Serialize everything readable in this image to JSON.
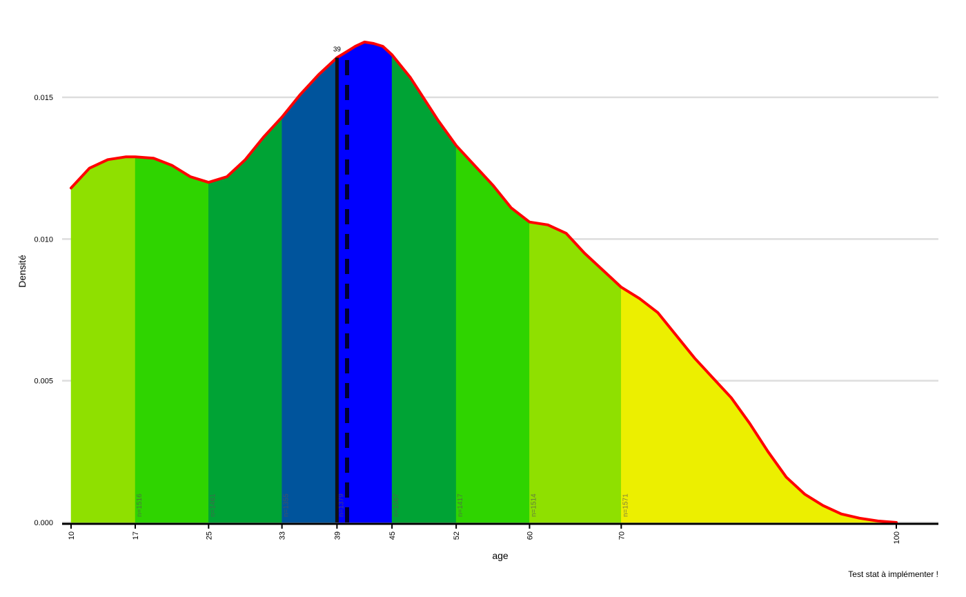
{
  "chart_data": {
    "type": "area",
    "xlabel": "age",
    "ylabel": "Densité",
    "caption": "Test stat à implémenter !",
    "xlim": [
      10,
      100
    ],
    "ylim": [
      0,
      0.0165
    ],
    "x_ticks": [
      10,
      17,
      25,
      33,
      39,
      45,
      52,
      60,
      70,
      100
    ],
    "y_ticks": [
      "0.000",
      "0.005",
      "0.010",
      "0.015"
    ],
    "grid": "horizontal",
    "median": {
      "value": 39,
      "label": "39"
    },
    "mean": {
      "value": 40.1
    },
    "curve": {
      "x": [
        10,
        12,
        14,
        16,
        17,
        19,
        21,
        23,
        25,
        27,
        29,
        31,
        33,
        35,
        37,
        39,
        40,
        41,
        42,
        43,
        44,
        45,
        47,
        50,
        52,
        54,
        56,
        58,
        60,
        62,
        64,
        66,
        68,
        70,
        72,
        74,
        76,
        78,
        80,
        82,
        84,
        86,
        88,
        90,
        92,
        94,
        96,
        98,
        100
      ],
      "y": [
        0.0118,
        0.0125,
        0.0128,
        0.0129,
        0.0129,
        0.01285,
        0.0126,
        0.0122,
        0.012,
        0.0122,
        0.0128,
        0.0136,
        0.0143,
        0.0151,
        0.0158,
        0.0164,
        0.0166,
        0.0168,
        0.01695,
        0.0169,
        0.0168,
        0.0165,
        0.0157,
        0.0142,
        0.0133,
        0.0126,
        0.0119,
        0.0111,
        0.0106,
        0.0105,
        0.0102,
        0.0095,
        0.0089,
        0.0083,
        0.0079,
        0.0074,
        0.0066,
        0.0058,
        0.0051,
        0.0044,
        0.0035,
        0.0025,
        0.0016,
        0.001,
        0.0006,
        0.0003,
        0.00015,
        5e-05,
        0.0
      ]
    },
    "bands": [
      {
        "from": 10,
        "to": 17,
        "color": "#8fe000",
        "label": ""
      },
      {
        "from": 17,
        "to": 25,
        "color": "#2fd400",
        "label": "n=1516"
      },
      {
        "from": 25,
        "to": 33,
        "color": "#00a335",
        "label": "n=1461"
      },
      {
        "from": 33,
        "to": 39,
        "color": "#00549c",
        "label": "n=1355"
      },
      {
        "from": 39,
        "to": 45,
        "color": "#0000ff",
        "label": "n=1379"
      },
      {
        "from": 45,
        "to": 52,
        "color": "#00a335",
        "label": "n=1567"
      },
      {
        "from": 52,
        "to": 60,
        "color": "#2fd400",
        "label": "n=1417"
      },
      {
        "from": 60,
        "to": 70,
        "color": "#8fe000",
        "label": "n=1514"
      },
      {
        "from": 70,
        "to": 100,
        "color": "#ecef00",
        "label": "n=1571"
      }
    ],
    "colors": {
      "curve": "#ff0000",
      "grid": "#dddddd",
      "axis": "#000000"
    }
  }
}
